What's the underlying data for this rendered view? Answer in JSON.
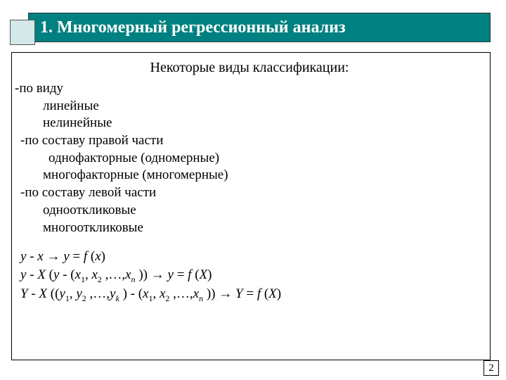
{
  "title": "1. Многомерный регрессионный анализ",
  "section_title": "Некоторые виды классификации:",
  "items": {
    "by_type": "-по виду",
    "linear": "линейные",
    "nonlinear": "нелинейные",
    "by_right": "-по составу правой части",
    "single_factor": "однофакторные (одномерные)",
    "multi_factor": "многофакторные (многомерные)",
    "by_left": "-по составу левой части",
    "single_resp": "однооткликовые",
    "multi_resp": "многооткликовые"
  },
  "formulas": {
    "f1_a": "y ",
    "f1_b": "- ",
    "f1_c": "x ",
    "f1_d": "→ ",
    "f1_e": "y ",
    "f1_f": "= ",
    "f1_g": "f ",
    "f1_h": "(",
    "f1_i": "x",
    "f1_j": ")",
    "f2_a": "y ",
    "f2_b": "- ",
    "f2_c": "X ",
    "f2_d": "(",
    "f2_e": "y ",
    "f2_f": "- (",
    "f2_g": "x",
    "f2_g1": "1",
    "f2_h": ", ",
    "f2_i": "x",
    "f2_i1": "2",
    "f2_j": " ,…,",
    "f2_k": "x",
    "f2_k1": "n",
    "f2_l": " )) → ",
    "f2_m": "y ",
    "f2_n": "= ",
    "f2_o": "f ",
    "f2_p": "(",
    "f2_q": "X",
    "f2_r": ")",
    "f3_a": "Y ",
    "f3_b": "- ",
    "f3_c": "X ",
    "f3_d": "((",
    "f3_e": "y",
    "f3_e1": "1",
    "f3_f": ", ",
    "f3_g": "y",
    "f3_g1": "2",
    "f3_h": " ,…,",
    "f3_i": "y",
    "f3_i1": "k",
    "f3_j": " ) - (",
    "f3_k": "x",
    "f3_k1": "1",
    "f3_l": ", ",
    "f3_m": "x",
    "f3_m1": "2",
    "f3_n": " ,…,",
    "f3_o": "x",
    "f3_o1": "n",
    "f3_p": " )) → ",
    "f3_q": "Y ",
    "f3_r": "= ",
    "f3_s": "f ",
    "f3_t": "(",
    "f3_u": "X",
    "f3_v": ")"
  },
  "page_number": "2",
  "colors": {
    "title_bg": "#008080",
    "title_text": "#ffffff",
    "corner_box_bg": "#d4e8e8",
    "border": "#000000",
    "body_bg": "#ffffff"
  }
}
